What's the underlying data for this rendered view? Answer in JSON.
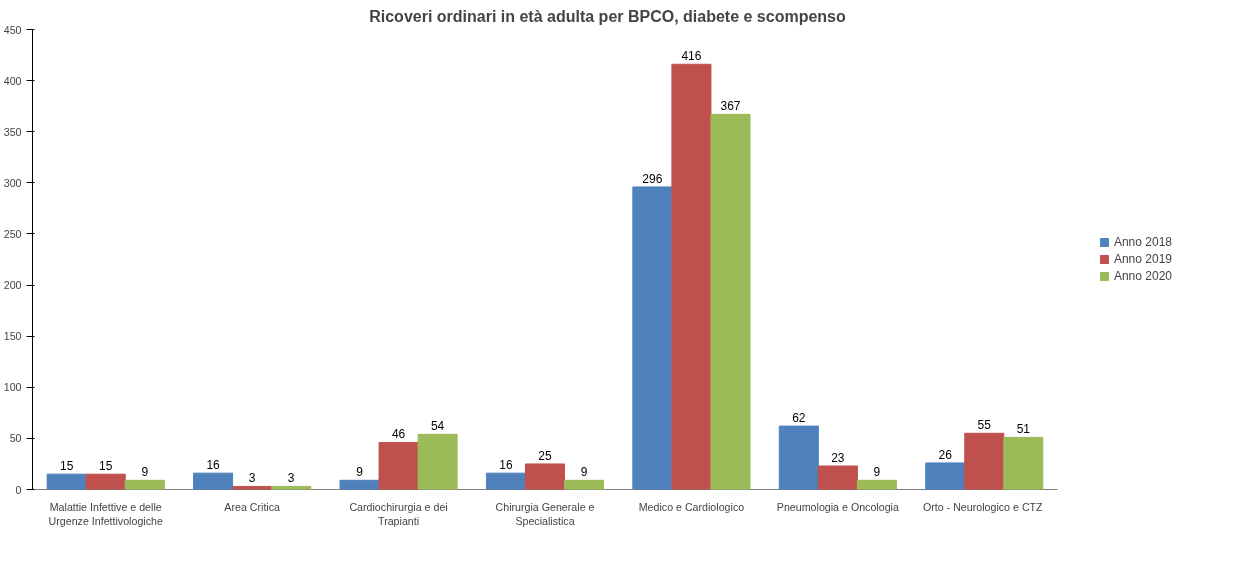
{
  "chart_data": {
    "type": "bar",
    "title": "Ricoveri ordinari in età adulta per BPCO, diabete e scompenso",
    "categories": [
      "Malattie Infettive e delle Urgenze Infettivologiche",
      "Area Critica",
      "Cardiochirurgia e dei Trapianti",
      "Chirurgia Generale e Specialistica",
      "Medico e Cardiologico",
      "Pneumologia e Oncologia",
      "Orto - Neurologico  e CTZ"
    ],
    "series": [
      {
        "name": "Anno 2018",
        "color": "#4f81bd",
        "values": [
          15,
          16,
          9,
          16,
          296,
          62,
          26
        ]
      },
      {
        "name": "Anno 2019",
        "color": "#c0504d",
        "values": [
          15,
          3,
          46,
          25,
          416,
          23,
          55
        ]
      },
      {
        "name": "Anno 2020",
        "color": "#9bbb59",
        "values": [
          9,
          3,
          54,
          9,
          367,
          9,
          51
        ]
      }
    ],
    "ylim": [
      0,
      450
    ],
    "yticks": [
      0,
      50,
      100,
      150,
      200,
      250,
      300,
      350,
      400,
      450
    ],
    "grid": false,
    "legend": "right",
    "data_labels": true
  }
}
